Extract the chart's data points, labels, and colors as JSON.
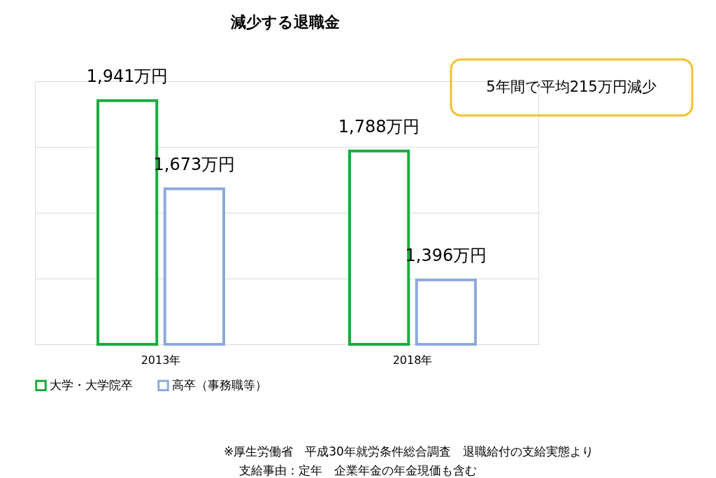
{
  "chart_data": {
    "type": "bar",
    "title": "減少する退職金",
    "categories": [
      "2013年",
      "2018年"
    ],
    "series": [
      {
        "name": "大学・大学院卒",
        "color": "#1aab40",
        "values": [
          1941,
          1788
        ],
        "value_labels": [
          "1,941万円",
          "1,788万円"
        ]
      },
      {
        "name": "高卒（事務職等）",
        "color": "#8eaadb",
        "values": [
          1673,
          1396
        ],
        "value_labels": [
          "1,673万円",
          "1,396万円"
        ]
      }
    ],
    "ylim": [
      1200,
      2000
    ],
    "yticks": [
      {
        "value": 1200,
        "label": null
      },
      {
        "value": 1400,
        "label": null
      },
      {
        "value": 1600,
        "label": null
      },
      {
        "value": 1800,
        "label": null
      },
      {
        "value": 2000,
        "label": null
      }
    ],
    "tick_labels": "x",
    "grid": "y",
    "legend": "bottom",
    "annotations": [
      "5年間で平均215万円減少",
      "※厚生労働省　平成30年就労条件総合調査　退職給付の支給実態より",
      "支給事由：定年　企業年金の年金現価も含む"
    ]
  }
}
